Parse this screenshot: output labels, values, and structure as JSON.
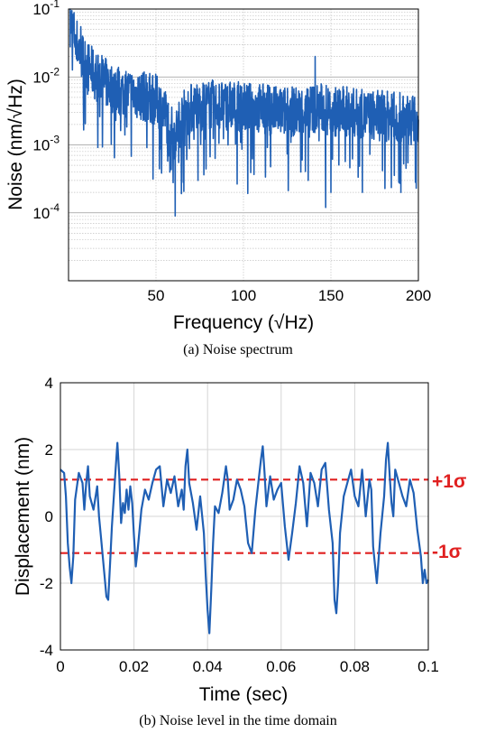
{
  "chart_data": [
    {
      "type": "line",
      "caption": "(a) Noise spectrum",
      "xlabel": "Frequency (√Hz)",
      "ylabel": "Noise (nm/√Hz)",
      "xlim": [
        0,
        200
      ],
      "ylim": [
        1e-05,
        0.1
      ],
      "yscale": "log",
      "grid": true,
      "xticks": [
        "50",
        "100",
        "150",
        "200"
      ],
      "yticks": [
        {
          "base": "10",
          "exp": "-1"
        },
        {
          "base": "10",
          "exp": "-2"
        },
        {
          "base": "10",
          "exp": "-3"
        },
        {
          "base": "10",
          "exp": "-4"
        }
      ],
      "color": "#1f5fb4",
      "envelope": [
        [
          0,
          0.1
        ],
        [
          2,
          0.07
        ],
        [
          5,
          0.04
        ],
        [
          8,
          0.025
        ],
        [
          12,
          0.017
        ],
        [
          16,
          0.013
        ],
        [
          20,
          0.011
        ],
        [
          25,
          0.009
        ],
        [
          30,
          0.008
        ],
        [
          35,
          0.0075
        ],
        [
          40,
          0.007
        ],
        [
          45,
          0.0065
        ],
        [
          50,
          0.006
        ],
        [
          55,
          0.004
        ],
        [
          58,
          0.0024
        ],
        [
          60,
          0.0018
        ],
        [
          62,
          0.002
        ],
        [
          65,
          0.0035
        ],
        [
          70,
          0.0045
        ],
        [
          80,
          0.005
        ],
        [
          90,
          0.005
        ],
        [
          100,
          0.0045
        ],
        [
          110,
          0.0045
        ],
        [
          120,
          0.004
        ],
        [
          130,
          0.004
        ],
        [
          140,
          0.0045
        ],
        [
          145,
          0.0045
        ],
        [
          150,
          0.004
        ],
        [
          160,
          0.004
        ],
        [
          170,
          0.0035
        ],
        [
          180,
          0.0035
        ],
        [
          190,
          0.0032
        ],
        [
          200,
          0.003
        ]
      ],
      "spikes": [
        [
          1,
          0.1
        ],
        [
          7,
          0.055
        ],
        [
          61,
          9e-05
        ],
        [
          74,
          0.0003
        ],
        [
          137,
          0.0003
        ],
        [
          141,
          0.02
        ],
        [
          147,
          0.00012
        ],
        [
          150,
          0.0002
        ],
        [
          168,
          0.0002
        ],
        [
          190,
          0.0002
        ]
      ]
    },
    {
      "type": "line",
      "caption": "(b) Noise level in the time domain",
      "xlabel": "Time (sec)",
      "ylabel": "Displacement (nm)",
      "xlim": [
        0,
        0.1
      ],
      "ylim": [
        -4,
        4
      ],
      "grid": true,
      "xticks": [
        "0",
        "0.02",
        "0.04",
        "0.06",
        "0.08",
        "0.1"
      ],
      "yticks": [
        "4",
        "2",
        "0",
        "-2",
        "-4"
      ],
      "color": "#1f5fb4",
      "sigma": 1.1,
      "sigma_labels": [
        "+1σ",
        "-1σ"
      ],
      "sigma_color": "#e02020",
      "points": [
        [
          0,
          1.4
        ],
        [
          0.001,
          1.3
        ],
        [
          0.0015,
          0.6
        ],
        [
          0.002,
          -0.8
        ],
        [
          0.0025,
          -1.5
        ],
        [
          0.003,
          -2.0
        ],
        [
          0.0035,
          -1.2
        ],
        [
          0.004,
          0.5
        ],
        [
          0.005,
          1.3
        ],
        [
          0.006,
          1.0
        ],
        [
          0.0065,
          0.2
        ],
        [
          0.007,
          1.0
        ],
        [
          0.0075,
          1.5
        ],
        [
          0.008,
          0.6
        ],
        [
          0.009,
          0.2
        ],
        [
          0.01,
          0.9
        ],
        [
          0.0105,
          0.0
        ],
        [
          0.011,
          -0.6
        ],
        [
          0.012,
          -1.8
        ],
        [
          0.0125,
          -2.4
        ],
        [
          0.013,
          -2.5
        ],
        [
          0.0135,
          -1.4
        ],
        [
          0.014,
          -0.3
        ],
        [
          0.015,
          1.4
        ],
        [
          0.0155,
          2.2
        ],
        [
          0.016,
          1.2
        ],
        [
          0.0165,
          -0.2
        ],
        [
          0.017,
          0.4
        ],
        [
          0.0175,
          0.1
        ],
        [
          0.018,
          0.8
        ],
        [
          0.0185,
          0.2
        ],
        [
          0.019,
          0.9
        ],
        [
          0.0195,
          0.4
        ],
        [
          0.02,
          -0.6
        ],
        [
          0.0205,
          -1.5
        ],
        [
          0.021,
          -1.0
        ],
        [
          0.022,
          0.2
        ],
        [
          0.023,
          0.8
        ],
        [
          0.024,
          0.5
        ],
        [
          0.025,
          1.0
        ],
        [
          0.026,
          1.4
        ],
        [
          0.027,
          1.5
        ],
        [
          0.028,
          0.3
        ],
        [
          0.029,
          1.1
        ],
        [
          0.03,
          0.7
        ],
        [
          0.031,
          1.2
        ],
        [
          0.032,
          0.3
        ],
        [
          0.033,
          0.8
        ],
        [
          0.0335,
          0.2
        ],
        [
          0.034,
          1.5
        ],
        [
          0.0345,
          2.0
        ],
        [
          0.035,
          1.0
        ],
        [
          0.036,
          0.4
        ],
        [
          0.037,
          -0.4
        ],
        [
          0.038,
          0.6
        ],
        [
          0.039,
          -0.5
        ],
        [
          0.0395,
          -1.8
        ],
        [
          0.04,
          -2.8
        ],
        [
          0.0405,
          -3.5
        ],
        [
          0.041,
          -2.2
        ],
        [
          0.0415,
          -0.8
        ],
        [
          0.042,
          0.3
        ],
        [
          0.043,
          0.1
        ],
        [
          0.044,
          0.7
        ],
        [
          0.045,
          1.5
        ],
        [
          0.0455,
          1.1
        ],
        [
          0.046,
          0.2
        ],
        [
          0.047,
          0.5
        ],
        [
          0.048,
          1.1
        ],
        [
          0.049,
          0.8
        ],
        [
          0.05,
          0.3
        ],
        [
          0.051,
          -0.8
        ],
        [
          0.052,
          -1.1
        ],
        [
          0.053,
          0.2
        ],
        [
          0.054,
          1.2
        ],
        [
          0.0545,
          1.7
        ],
        [
          0.055,
          2.1
        ],
        [
          0.0555,
          1.3
        ],
        [
          0.056,
          0.3
        ],
        [
          0.057,
          1.2
        ],
        [
          0.058,
          0.5
        ],
        [
          0.059,
          0.8
        ],
        [
          0.06,
          1.0
        ],
        [
          0.061,
          -0.3
        ],
        [
          0.062,
          -1.3
        ],
        [
          0.063,
          -0.5
        ],
        [
          0.064,
          0.4
        ],
        [
          0.065,
          1.5
        ],
        [
          0.066,
          1.0
        ],
        [
          0.067,
          -0.3
        ],
        [
          0.068,
          1.3
        ],
        [
          0.069,
          1.0
        ],
        [
          0.07,
          0.3
        ],
        [
          0.071,
          1.4
        ],
        [
          0.072,
          1.6
        ],
        [
          0.073,
          0.2
        ],
        [
          0.074,
          -0.8
        ],
        [
          0.0745,
          -2.5
        ],
        [
          0.075,
          -2.9
        ],
        [
          0.0755,
          -2.0
        ],
        [
          0.076,
          -0.5
        ],
        [
          0.077,
          0.6
        ],
        [
          0.078,
          1.0
        ],
        [
          0.079,
          1.4
        ],
        [
          0.08,
          0.6
        ],
        [
          0.081,
          0.3
        ],
        [
          0.082,
          1.4
        ],
        [
          0.083,
          0.0
        ],
        [
          0.084,
          1.1
        ],
        [
          0.0845,
          0.8
        ],
        [
          0.085,
          -0.9
        ],
        [
          0.086,
          -2.0
        ],
        [
          0.087,
          -0.5
        ],
        [
          0.088,
          0.6
        ],
        [
          0.0885,
          1.7
        ],
        [
          0.089,
          2.2
        ],
        [
          0.0895,
          1.2
        ],
        [
          0.09,
          0.4
        ],
        [
          0.0905,
          0.0
        ],
        [
          0.091,
          1.4
        ],
        [
          0.092,
          1.0
        ],
        [
          0.093,
          0.6
        ],
        [
          0.094,
          0.3
        ],
        [
          0.095,
          1.1
        ],
        [
          0.096,
          0.7
        ],
        [
          0.097,
          -0.4
        ],
        [
          0.098,
          -1.2
        ],
        [
          0.0985,
          -2.0
        ],
        [
          0.099,
          -1.6
        ],
        [
          0.0995,
          -2.0
        ],
        [
          0.1,
          -1.9
        ]
      ]
    }
  ]
}
